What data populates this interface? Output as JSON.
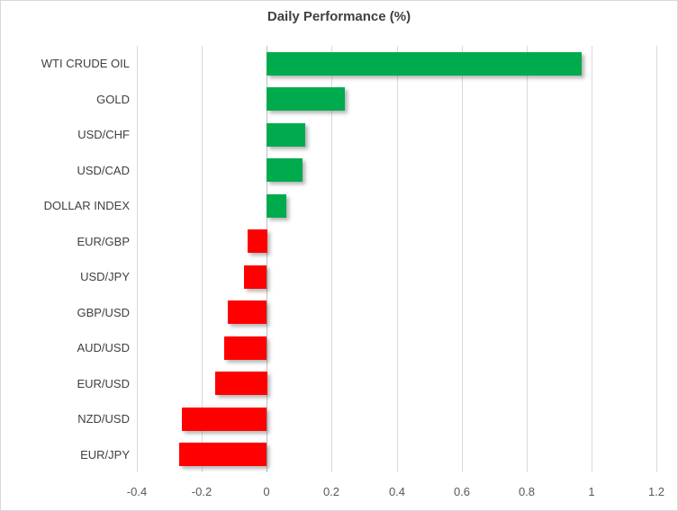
{
  "chart_data": {
    "type": "bar",
    "orientation": "horizontal",
    "title": "Daily Performance (%)",
    "categories": [
      "WTI CRUDE OIL",
      "GOLD",
      "USD/CHF",
      "USD/CAD",
      "DOLLAR INDEX",
      "EUR/GBP",
      "USD/JPY",
      "GBP/USD",
      "AUD/USD",
      "EUR/USD",
      "NZD/USD",
      "EUR/JPY"
    ],
    "values": [
      0.97,
      0.24,
      0.12,
      0.11,
      0.06,
      -0.06,
      -0.07,
      -0.12,
      -0.13,
      -0.16,
      -0.26,
      -0.27
    ],
    "xlabel": "",
    "ylabel": "",
    "xlim": [
      -0.4,
      1.2
    ],
    "xticks": [
      -0.4,
      -0.2,
      0,
      0.2,
      0.4,
      0.6,
      0.8,
      1,
      1.2
    ],
    "xtick_labels": [
      "-0.4",
      "-0.2",
      "0",
      "0.2",
      "0.4",
      "0.6",
      "0.8",
      "1",
      "1.2"
    ],
    "grid": true,
    "legend": false,
    "colors": {
      "positive": "#00AB4E",
      "negative": "#FF0000",
      "gridline": "#D9D9D9",
      "zero_line": "#BFBFBF",
      "title_text": "#404040",
      "category_text": "#404040",
      "tick_text": "#595959",
      "border": "#D9D9D9",
      "background": "#FFFFFF"
    }
  }
}
